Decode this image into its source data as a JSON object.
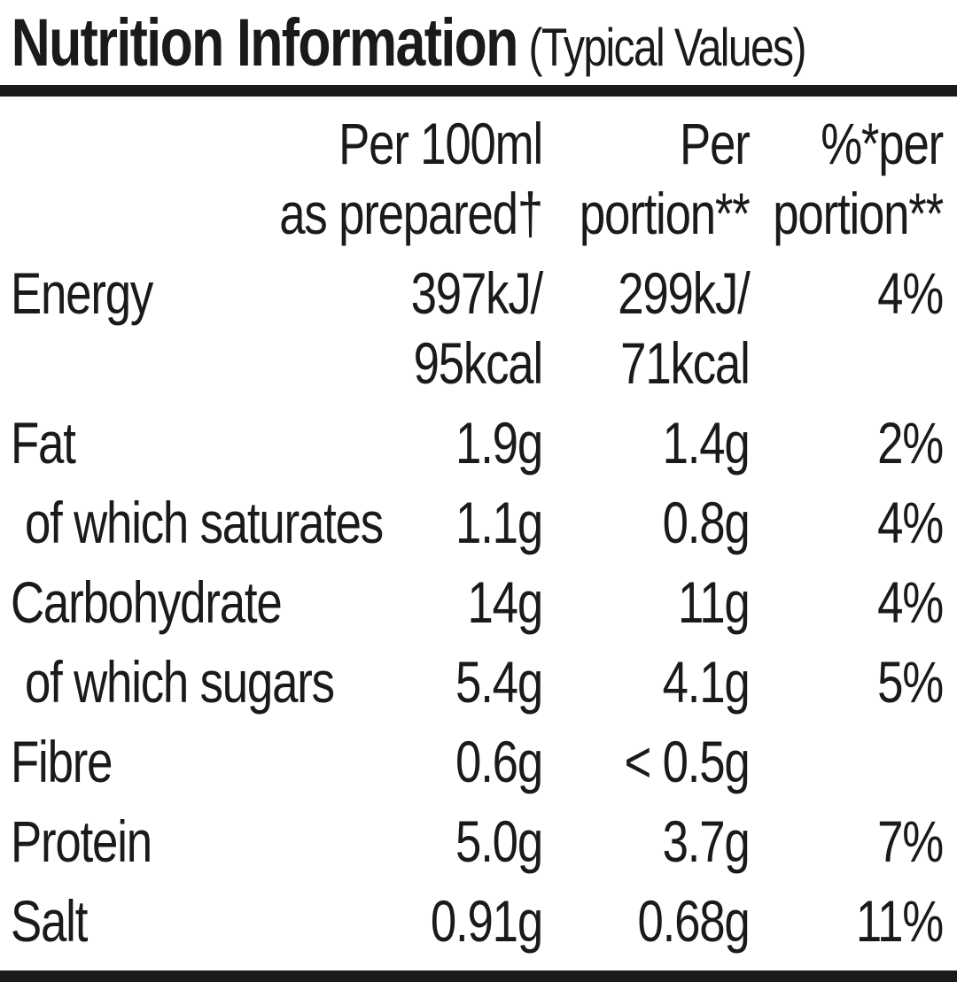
{
  "title": {
    "main": "Nutrition Information",
    "suffix": "(Typical Values)"
  },
  "ink_color": "#1a1a18",
  "background_color": "#ffffff",
  "table": {
    "columns": [
      "Per 100ml\nas prepared†",
      "Per\nportion**",
      "%*per\nportion**"
    ],
    "rows": [
      {
        "label": "Energy",
        "indent": false,
        "per_100ml": "397kJ/\n95kcal",
        "per_portion": "299kJ/\n71kcal",
        "pct_per_portion": "4%"
      },
      {
        "label": "Fat",
        "indent": false,
        "per_100ml": "1.9g",
        "per_portion": "1.4g",
        "pct_per_portion": "2%"
      },
      {
        "label": "of which saturates",
        "indent": true,
        "per_100ml": "1.1g",
        "per_portion": "0.8g",
        "pct_per_portion": "4%"
      },
      {
        "label": "Carbohydrate",
        "indent": false,
        "per_100ml": "14g",
        "per_portion": "11g",
        "pct_per_portion": "4%"
      },
      {
        "label": "of which sugars",
        "indent": true,
        "per_100ml": "5.4g",
        "per_portion": "4.1g",
        "pct_per_portion": "5%"
      },
      {
        "label": "Fibre",
        "indent": false,
        "per_100ml": "0.6g",
        "per_portion": "< 0.5g",
        "pct_per_portion": ""
      },
      {
        "label": "Protein",
        "indent": false,
        "per_100ml": "5.0g",
        "per_portion": "3.7g",
        "pct_per_portion": "7%"
      },
      {
        "label": "Salt",
        "indent": false,
        "per_100ml": "0.91g",
        "per_portion": "0.68g",
        "pct_per_portion": "11%"
      }
    ]
  }
}
